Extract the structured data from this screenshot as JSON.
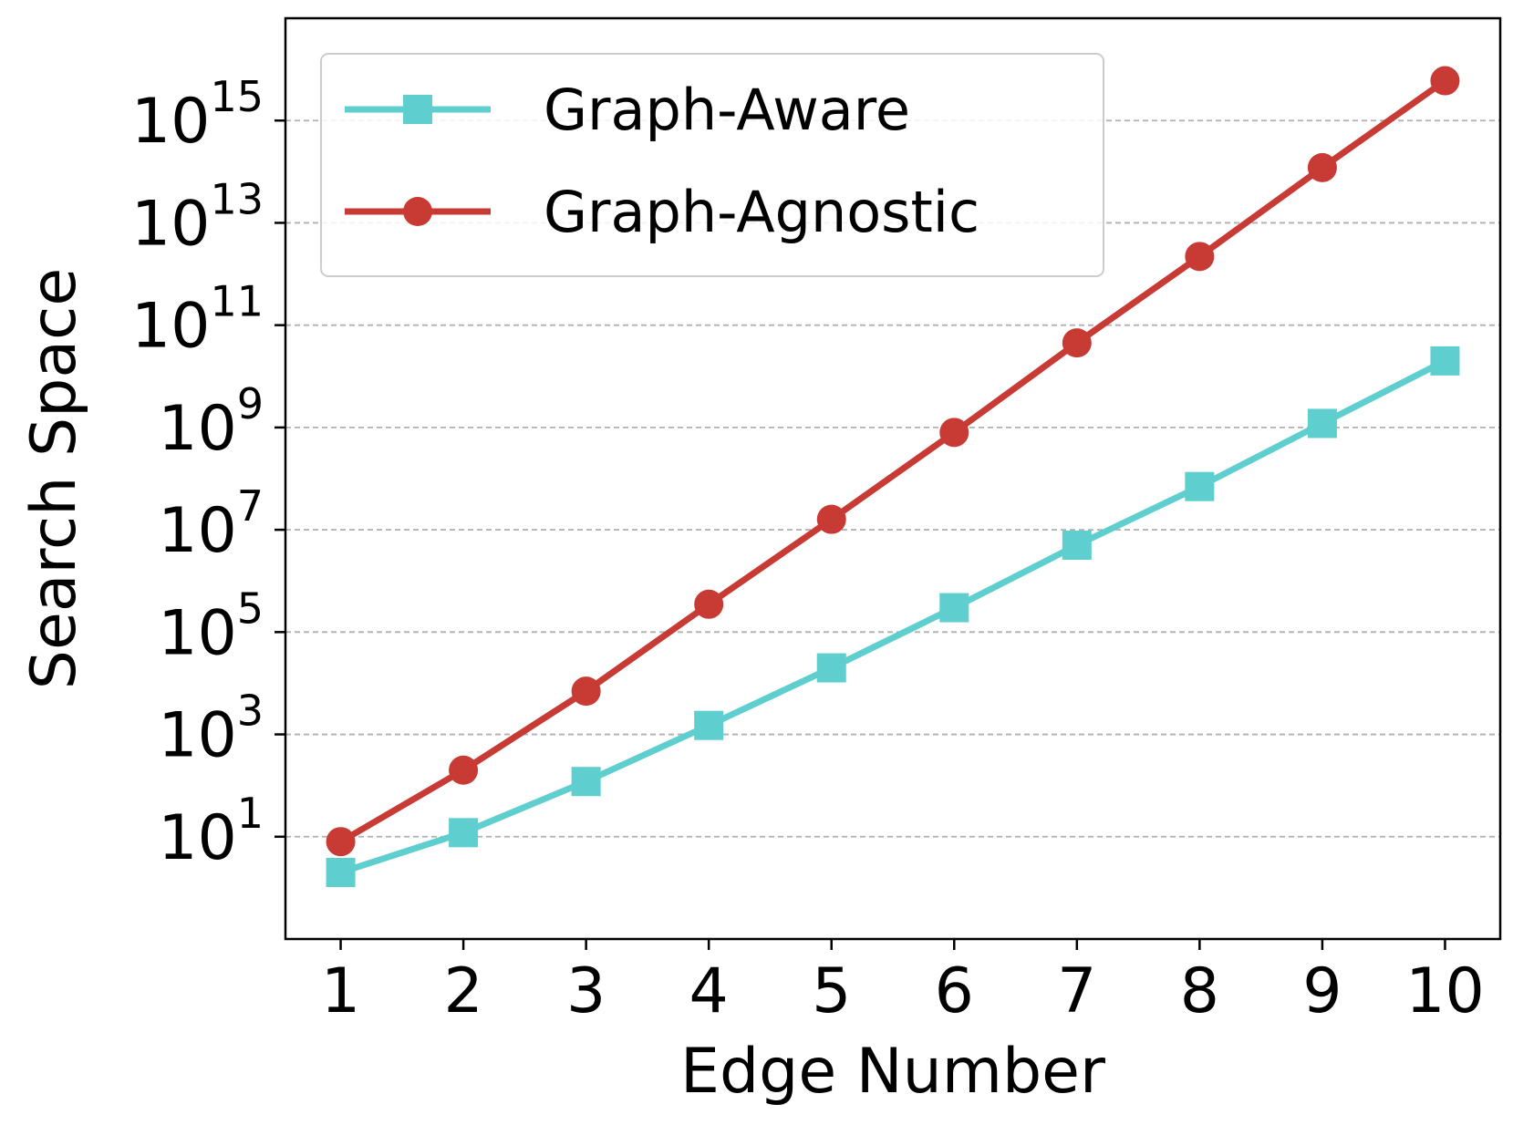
{
  "chart_data": {
    "type": "line",
    "title": "",
    "xlabel": "Edge Number",
    "ylabel": "Search Space",
    "x": [
      1,
      2,
      3,
      4,
      5,
      6,
      7,
      8,
      9,
      10
    ],
    "xlim": [
      0.55,
      10.45
    ],
    "yscale": "log",
    "ylim": [
      0.1,
      1e+17
    ],
    "x_ticks": [
      "1",
      "2",
      "3",
      "4",
      "5",
      "6",
      "7",
      "8",
      "9",
      "10"
    ],
    "y_ticks": [
      {
        "base": "10",
        "exp": "1",
        "value": 10
      },
      {
        "base": "10",
        "exp": "3",
        "value": 1000
      },
      {
        "base": "10",
        "exp": "5",
        "value": 100000
      },
      {
        "base": "10",
        "exp": "7",
        "value": 10000000
      },
      {
        "base": "10",
        "exp": "9",
        "value": 1000000000
      },
      {
        "base": "10",
        "exp": "11",
        "value": 100000000000
      },
      {
        "base": "10",
        "exp": "13",
        "value": 10000000000000
      },
      {
        "base": "10",
        "exp": "15",
        "value": 1000000000000000
      }
    ],
    "grid": "y-major-dashed",
    "legend_position": "top-left",
    "series": [
      {
        "name": "Graph-Aware",
        "color": "#5ecece",
        "marker": "square",
        "values": [
          2,
          12,
          120,
          1500,
          20000,
          300000,
          5000000,
          70000000,
          1200000000,
          20000000000
        ]
      },
      {
        "name": "Graph-Agnostic",
        "color": "#c83a34",
        "marker": "circle",
        "values": [
          8,
          200,
          7000,
          350000,
          16000000,
          800000000,
          45000000000,
          2200000000000,
          120000000000000,
          6000000000000000
        ]
      }
    ]
  }
}
